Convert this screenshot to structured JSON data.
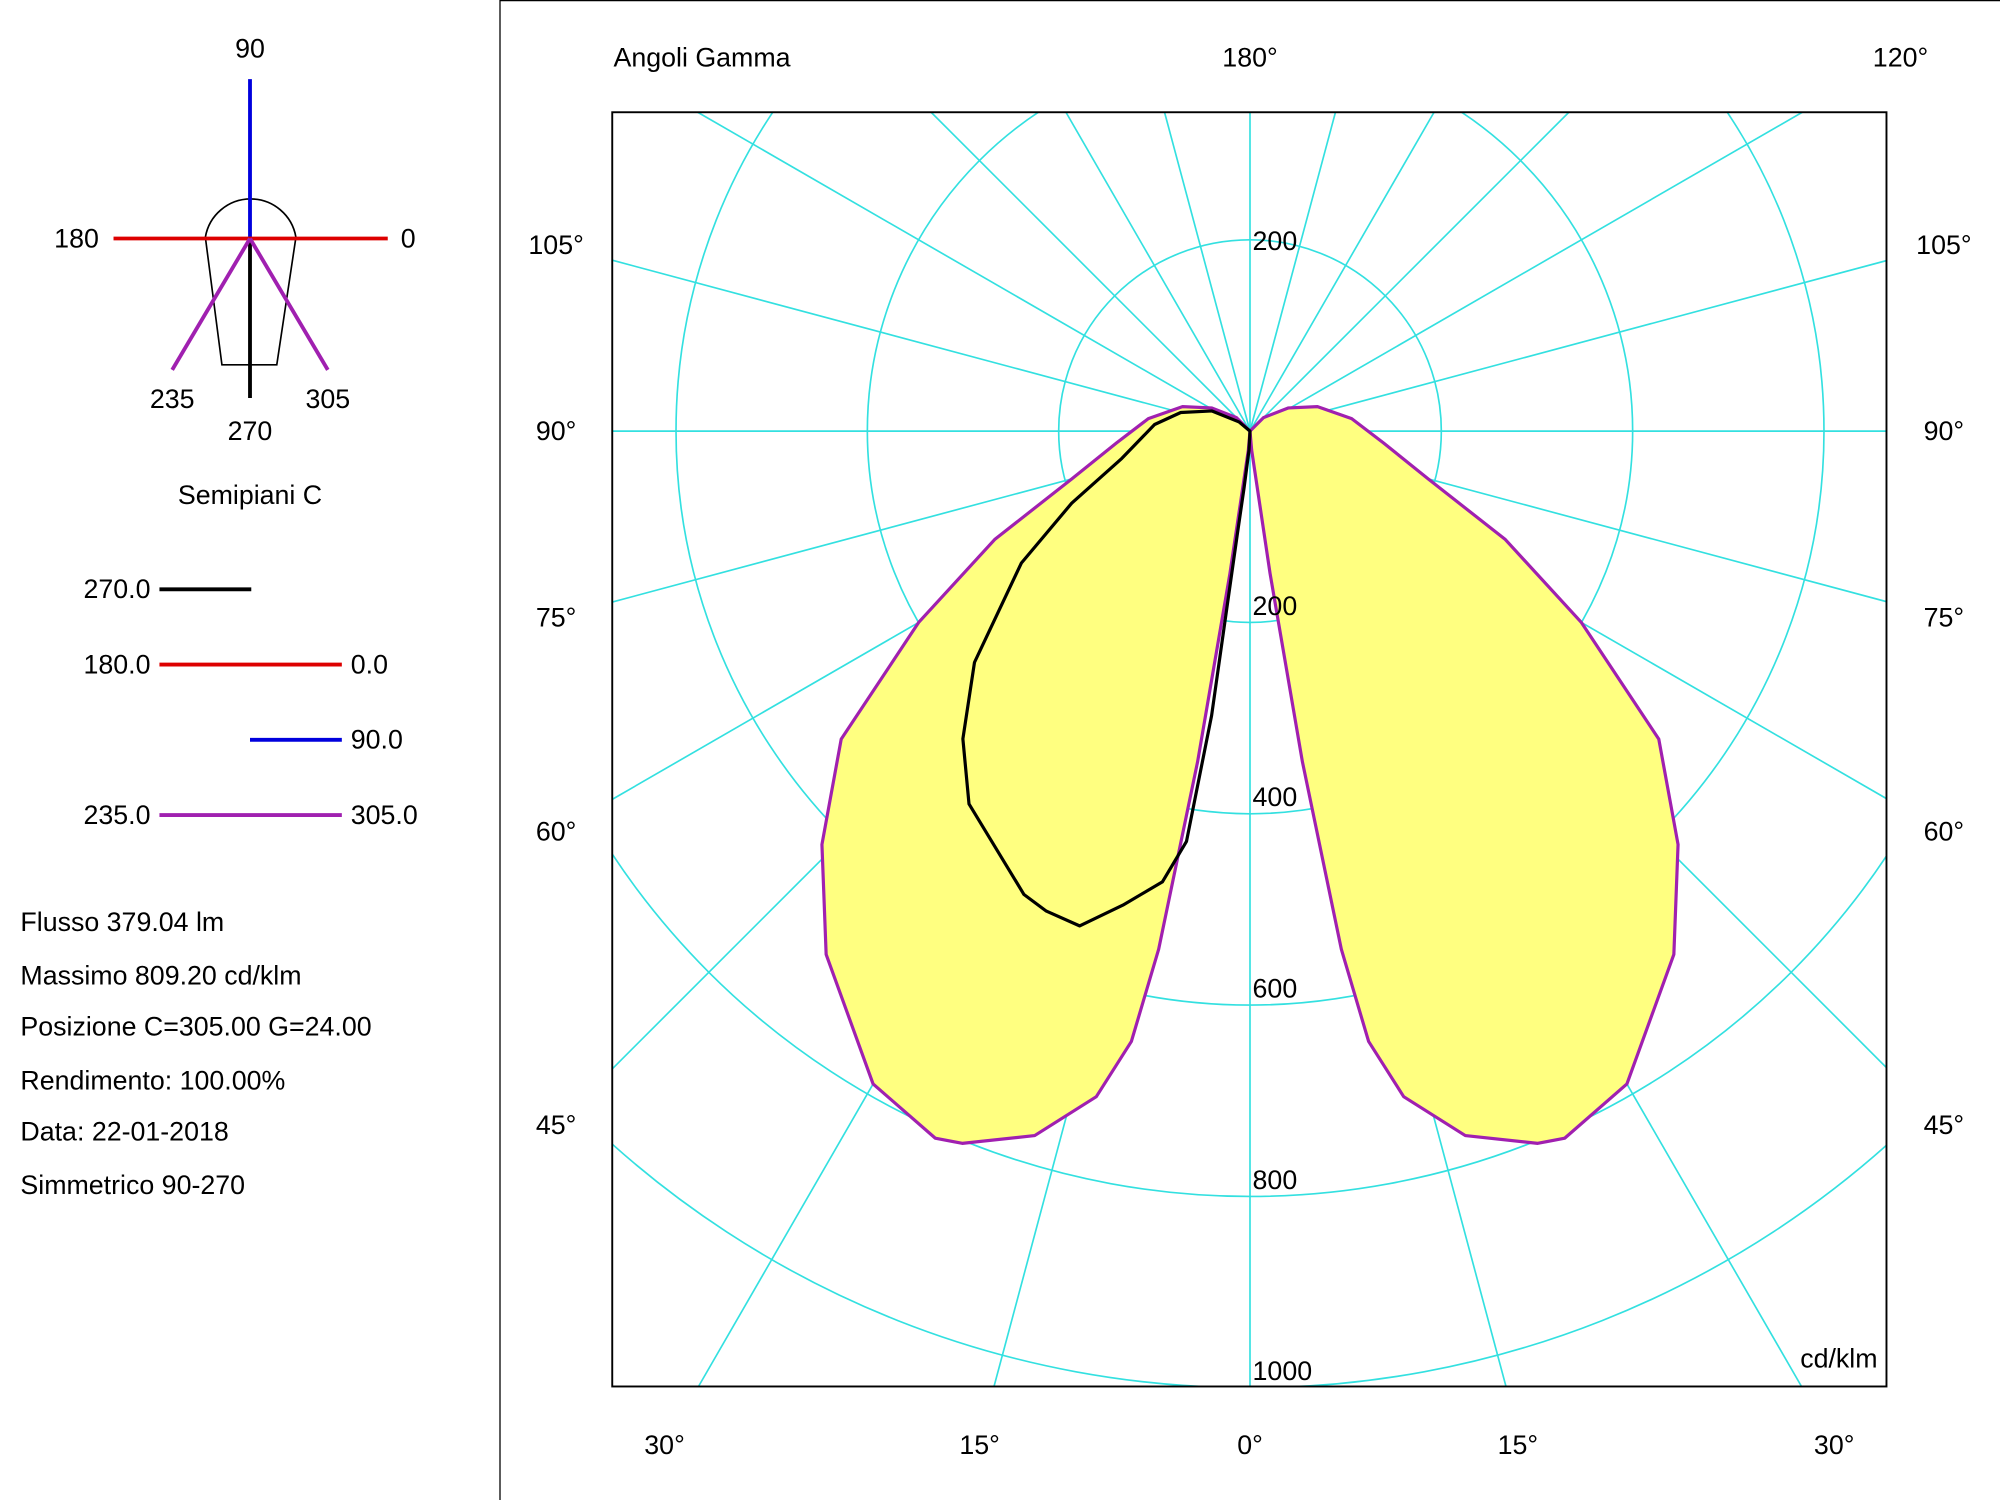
{
  "legend_panel": {
    "compass": {
      "top": "90",
      "left": "180",
      "right": "0",
      "bottom_left": "235",
      "bottom": "270",
      "bottom_right": "305"
    },
    "title": "Semipiani C",
    "entries": [
      {
        "left": "270.0",
        "right": "",
        "color": "#000000"
      },
      {
        "left": "180.0",
        "right": "0.0",
        "color": "#dd0000"
      },
      {
        "left": "",
        "right": "90.0",
        "color": "#0000dd"
      },
      {
        "left": "235.0",
        "right": "305.0",
        "color": "#a020b0"
      }
    ],
    "info": [
      "Flusso 379.04  lm",
      "Massimo 809.20  cd/klm",
      "Posizione C=305.00 G=24.00",
      "Rendimento: 100.00%",
      "Data: 22-01-2018",
      "Simmetrico 90-270"
    ]
  },
  "chart_data": {
    "type": "polar",
    "title": "Angoli Gamma",
    "unit": "cd/klm",
    "radial_ticks": [
      200,
      400,
      600,
      800,
      1000
    ],
    "radial_top_label": "200",
    "rmax": 1000,
    "angle_step_deg": 15,
    "angle_labels": {
      "top_center": "180°",
      "top_right": "120°",
      "left": [
        "105°",
        "90°",
        "75°",
        "60°",
        "45°"
      ],
      "right": [
        "105°",
        "90°",
        "75°",
        "60°",
        "45°"
      ],
      "bottom": [
        "30°",
        "15°",
        "0°",
        "15°",
        "30°"
      ]
    },
    "grid_color": "#33e0e0",
    "fill_color": "#ffff80",
    "series": [
      {
        "name": "235.0 / 305.0",
        "color": "#a020b0",
        "fill": true,
        "mirror": true,
        "gamma": [
          0,
          5,
          8,
          9,
          10,
          11,
          13,
          17,
          22,
          24,
          30,
          39,
          46,
          53,
          60,
          67,
          75,
          85,
          97,
          110,
          121,
          135,
          150
        ],
        "intensity": [
          0,
          20,
          150,
          350,
          550,
          650,
          714,
          770,
          803,
          809,
          788,
          704,
          622,
          535,
          400,
          290,
          193,
          140,
          107,
          75,
          47,
          20,
          0
        ]
      },
      {
        "name": "270.0",
        "color": "#000000",
        "fill": false,
        "mirror": false,
        "gamma": [
          0,
          3,
          6,
          7,
          7.7,
          8.8,
          11,
          15,
          19,
          23,
          26,
          37,
          43,
          50,
          60,
          68,
          78,
          94,
          105,
          118,
          130,
          140
        ],
        "intensity": [
          0,
          20,
          60,
          110,
          300,
          434,
          480,
          513,
          547,
          545,
          539,
          488,
          440,
          376,
          276,
          201,
          137,
          100,
          75,
          45,
          15,
          0
        ]
      }
    ]
  }
}
